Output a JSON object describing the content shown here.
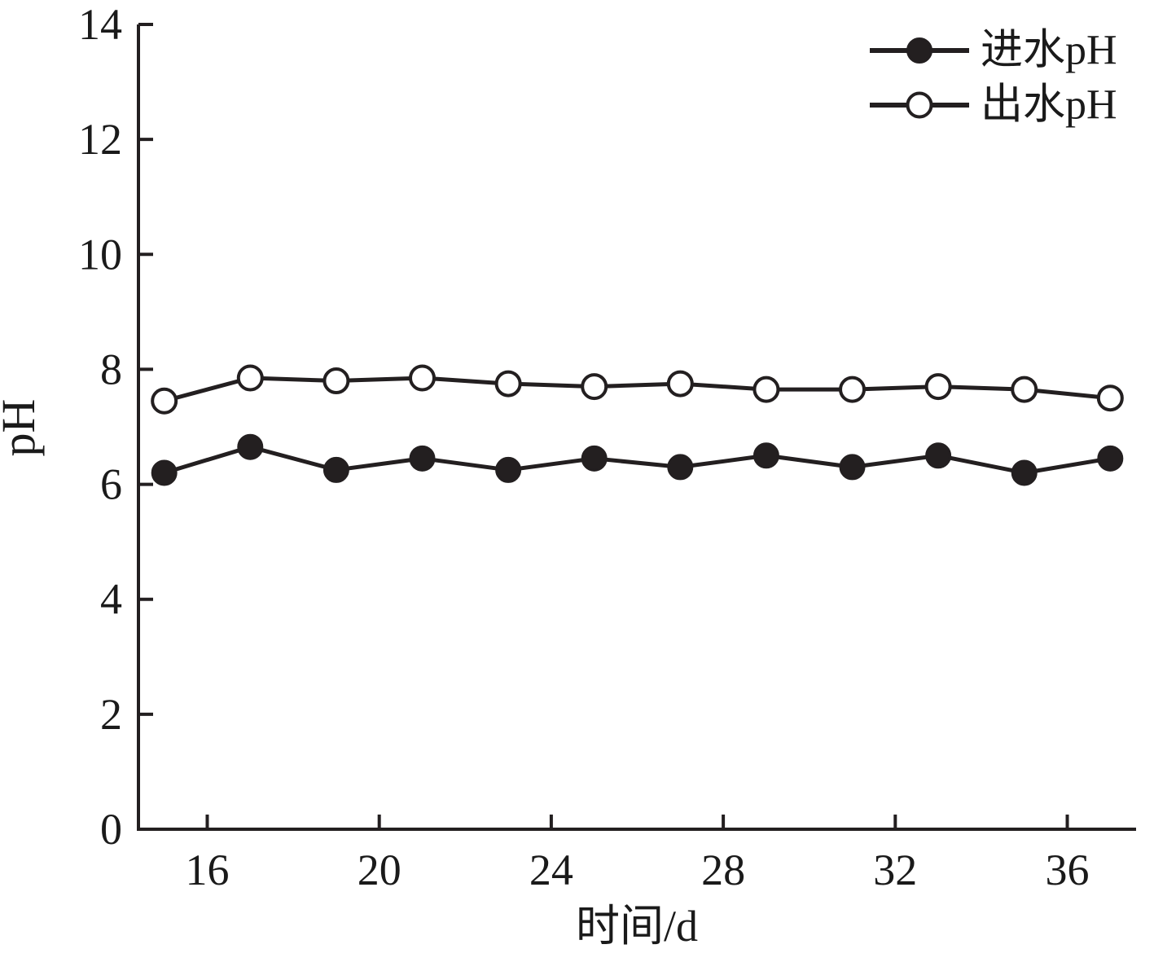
{
  "chart_data": {
    "type": "line",
    "title": "",
    "xlabel": "时间/d",
    "ylabel": "pH",
    "xlim": [
      14.4,
      37.6
    ],
    "ylim": [
      0,
      14
    ],
    "x_ticks": [
      16,
      20,
      24,
      28,
      32,
      36
    ],
    "y_ticks": [
      0,
      2,
      4,
      6,
      8,
      10,
      12,
      14
    ],
    "grid": false,
    "legend_position": "top-right",
    "line_color": "#231f20",
    "x": [
      15,
      17,
      19,
      21,
      23,
      25,
      27,
      29,
      31,
      33,
      35,
      37
    ],
    "series": [
      {
        "name": "进水pH",
        "marker": "filled-circle",
        "values": [
          6.2,
          6.65,
          6.25,
          6.45,
          6.25,
          6.45,
          6.3,
          6.5,
          6.3,
          6.5,
          6.2,
          6.45
        ]
      },
      {
        "name": "出水pH",
        "marker": "open-circle",
        "values": [
          7.45,
          7.85,
          7.8,
          7.85,
          7.75,
          7.7,
          7.75,
          7.65,
          7.65,
          7.7,
          7.65,
          7.5
        ]
      }
    ]
  }
}
